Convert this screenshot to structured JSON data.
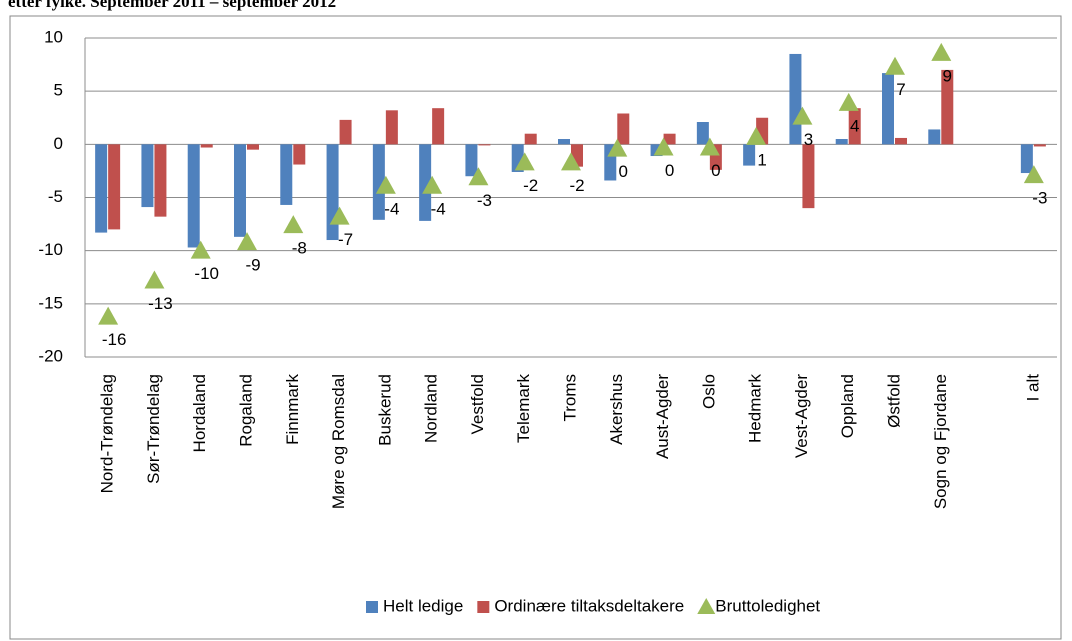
{
  "chart_data": {
    "type": "bar",
    "title": "etter fylke. September 2011 – september 2012",
    "categories": [
      "Nord-Trøndelag",
      "Sør-Trøndelag",
      "Hordaland",
      "Rogaland",
      "Finnmark",
      "Møre og Romsdal",
      "Buskerud",
      "Nordland",
      "Vestfold",
      "Telemark",
      "Troms",
      "Akershus",
      "Aust-Agder",
      "Oslo",
      "Hedmark",
      "Vest-Agder",
      "Oppland",
      "Østfold",
      "Sogn og Fjordane",
      null,
      "I alt"
    ],
    "series": [
      {
        "name": "Helt ledige",
        "color": "#4f81bd",
        "type": "bar",
        "values": [
          -8.3,
          -5.9,
          -9.7,
          -8.7,
          -5.7,
          -9.0,
          -7.1,
          -7.2,
          -3.0,
          -2.6,
          0.5,
          -3.4,
          -1.1,
          2.1,
          -2.0,
          8.5,
          0.5,
          6.7,
          1.4,
          null,
          -2.7
        ]
      },
      {
        "name": "Ordinære tiltaksdeltakere",
        "color": "#c0504d",
        "type": "bar",
        "values": [
          -8.0,
          -6.8,
          -0.3,
          -0.5,
          -1.9,
          2.3,
          3.2,
          3.4,
          -0.1,
          1.0,
          -2.1,
          2.9,
          1.0,
          -2.4,
          2.5,
          -6.0,
          3.4,
          0.6,
          7.0,
          null,
          -0.2
        ]
      },
      {
        "name": "Bruttoledighet",
        "color": "#9bbb59",
        "type": "scatter",
        "values": [
          -16.2,
          -12.8,
          -10.0,
          -9.2,
          -7.6,
          -6.8,
          -3.9,
          -3.9,
          -3.1,
          -1.7,
          -1.7,
          -0.4,
          -0.3,
          -0.3,
          0.7,
          2.6,
          3.9,
          7.3,
          8.6,
          null,
          -2.9
        ],
        "value_labels": [
          "-16",
          "-13",
          "-10",
          "-9",
          "-8",
          "-7",
          "-4",
          "-4",
          "-3",
          "-2",
          "-2",
          "0",
          "0",
          "0",
          "1",
          "3",
          "4",
          "7",
          "9",
          null,
          "-3"
        ]
      }
    ],
    "ylim": [
      -20,
      10
    ],
    "yticks": [
      -20,
      -15,
      -10,
      -5,
      0,
      5,
      10
    ],
    "grid": true,
    "legend": "bottom"
  }
}
